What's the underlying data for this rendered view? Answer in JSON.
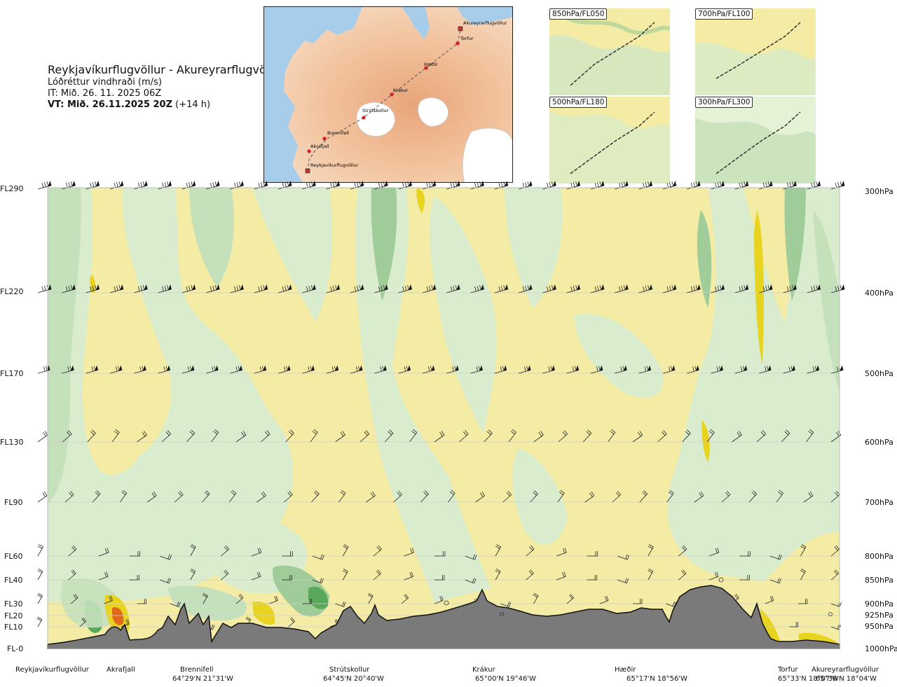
{
  "header": {
    "title": "Reykjavíkurflugvöllur - Akureyrarflugvöllur",
    "subtitle": "Lóðréttur vindhraði (m/s)",
    "issue_time": "IT: Mið. 26. 11. 2025 06Z",
    "valid_time_bold": "VT: Mið. 26.11.2025 20Z",
    "valid_time_offset": "(+14 h)"
  },
  "route_map": {
    "points": [
      {
        "label": "Akureyrarflugvöllur"
      },
      {
        "label": "Torfur"
      },
      {
        "label": "Hæðir"
      },
      {
        "label": "Krákur"
      },
      {
        "label": "Strútskollur"
      },
      {
        "label": "Brennifell"
      },
      {
        "label": "Akrafjall"
      },
      {
        "label": "Reykjavíkurflugvöllur"
      }
    ]
  },
  "mini_maps": [
    {
      "label": "850hPa/FL050"
    },
    {
      "label": "700hPa/FL100"
    },
    {
      "label": "500hPa/FL180"
    },
    {
      "label": "300hPa/FL300"
    }
  ],
  "chart_data": {
    "type": "heatmap",
    "title": "Lóðréttur vindhraði (m/s)",
    "xlabel": "",
    "ylabel": "",
    "flight_levels": [
      {
        "label": "FL290"
      },
      {
        "label": "FL220"
      },
      {
        "label": "FL170"
      },
      {
        "label": "FL130"
      },
      {
        "label": "FL90"
      },
      {
        "label": "FL60"
      },
      {
        "label": "FL40"
      },
      {
        "label": "FL30"
      },
      {
        "label": "FL20"
      },
      {
        "label": "FL10"
      },
      {
        "label": "FL-0"
      }
    ],
    "pressure_levels": [
      {
        "label": "300hPa"
      },
      {
        "label": "400hPa"
      },
      {
        "label": "500hPa"
      },
      {
        "label": "600hPa"
      },
      {
        "label": "700hPa"
      },
      {
        "label": "800hPa"
      },
      {
        "label": "850hPa"
      },
      {
        "label": "900hPa"
      },
      {
        "label": "925hPa"
      },
      {
        "label": "950hPa"
      },
      {
        "label": "1000hPa"
      }
    ],
    "locations": [
      {
        "name": "Reykjavíkurflugvöllur",
        "coord": ""
      },
      {
        "name": "Akrafjall",
        "coord": ""
      },
      {
        "name": "Brennifell",
        "coord": "64°29'N 21°31'W"
      },
      {
        "name": "Strútskollur",
        "coord": "64°45'N 20°40'W"
      },
      {
        "name": "Krákur",
        "coord": "65°00'N 19°46'W"
      },
      {
        "name": "Hæðir",
        "coord": "65°17'N 18°56'W"
      },
      {
        "name": "Torfur",
        "coord": "65°33'N 18°07'W"
      },
      {
        "name": "Akureyrarflugvöllur",
        "coord": "65°39'N 18°04'W"
      }
    ],
    "colors": {
      "strong_down": "#e8d320",
      "down": "#f4eca4",
      "weak_down": "#fbf7d3",
      "neutral": "#f7fbec",
      "weak_up": "#e7f3d9",
      "up": "#c9e6c2",
      "strong_up": "#9fcc98",
      "very_strong_up": "#5aa85a",
      "terrain": "#7a7a7a",
      "extreme": "#e06a1a"
    }
  }
}
